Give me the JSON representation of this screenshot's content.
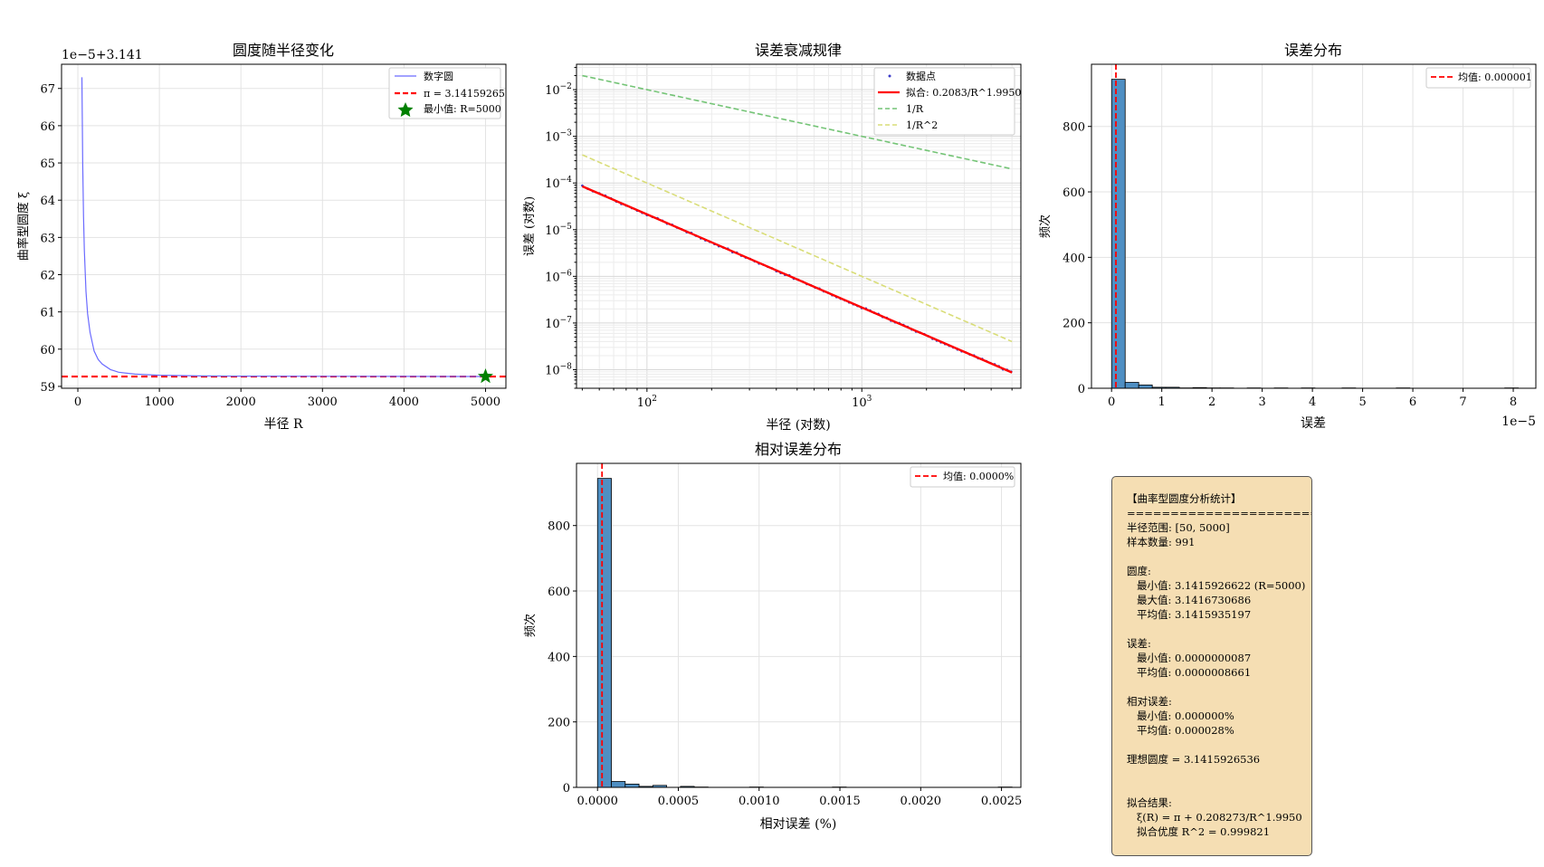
{
  "charts": {
    "p1": {
      "title": "圆度随半径变化",
      "xlabel": "半径 R",
      "ylabel": "曲率型圆度 ξ",
      "offset_text": "1e−5+3.141",
      "xtick_labels": [
        "0",
        "1000",
        "2000",
        "3000",
        "4000",
        "5000"
      ],
      "ytick_labels": [
        "59",
        "60",
        "61",
        "62",
        "63",
        "64",
        "65",
        "66",
        "67"
      ],
      "legend": [
        "数字圆",
        "π = 3.14159265",
        "最小值: R=5000"
      ]
    },
    "p2": {
      "title": "误差衰减规律",
      "xlabel": "半径 (对数)",
      "ylabel": "误差 (对数)",
      "legend": [
        "数据点",
        "拟合: 0.2083/R^1.9950",
        "1/R",
        "1/R^2"
      ]
    },
    "p3": {
      "title": "误差分布",
      "xlabel": "误差",
      "ylabel": "频次",
      "offset_text": "1e−5",
      "xtick_labels": [
        "0",
        "1",
        "2",
        "3",
        "4",
        "5",
        "6",
        "7",
        "8"
      ],
      "ytick_labels": [
        "0",
        "200",
        "400",
        "600",
        "800"
      ],
      "legend": [
        "均值: 0.000001"
      ]
    },
    "p4": {
      "title": "相对误差分布",
      "xlabel": "相对误差 (%)",
      "ylabel": "频次",
      "xtick_labels": [
        "0.0000",
        "0.0005",
        "0.0010",
        "0.0015",
        "0.0020",
        "0.0025"
      ],
      "ytick_labels": [
        "0",
        "200",
        "400",
        "600",
        "800"
      ],
      "legend": [
        "均值: 0.0000%"
      ]
    }
  },
  "stats_text": "【曲率型圆度分析统计】\n============================\n半径范围: [50, 5000]\n样本数量: 991\n\n圆度:\n   最小值: 3.1415926622 (R=5000)\n   最大值: 3.1416730686\n   平均值: 3.1415935197\n\n误差:\n   最小值: 0.0000000087\n   平均值: 0.0000008661\n\n相对误差:\n   最小值: 0.000000%\n   平均值: 0.000028%\n\n理想圆度 = 3.1415926536\n\n\n拟合结果:\n   ξ(R) = π + 0.208273/R^1.9950\n   拟合优度 R^2 = 0.999821",
  "colors": {
    "curve": "#6b6bff",
    "pi_line": "#ff0000",
    "min_marker": "#008000",
    "data_points": "#3c3cc8",
    "fit": "#ff0000",
    "ref_1_over_R": "#74c476",
    "ref_1_over_R2": "#d9dd78",
    "hist_bar": "#4f8fc3",
    "stats_bg": "#f5deb3"
  },
  "chart_data": [
    {
      "type": "line",
      "id": "p1",
      "x_range": [
        50,
        5000
      ],
      "y_unit": "ξ (value = 3.141 + y × 1e-5)",
      "x": [
        50,
        60,
        70,
        80,
        100,
        120,
        150,
        200,
        250,
        300,
        400,
        500,
        700,
        1000,
        1500,
        2000,
        3000,
        4000,
        5000
      ],
      "y": [
        67.3,
        64.95,
        63.55,
        62.65,
        61.55,
        60.95,
        60.45,
        59.95,
        59.72,
        59.6,
        59.45,
        59.38,
        59.33,
        59.3,
        59.28,
        59.275,
        59.27,
        59.268,
        59.266
      ],
      "pi_value": 59.265,
      "min_point": {
        "x": 5000,
        "y": 59.266
      },
      "xlim": [
        -200,
        5250
      ],
      "ylim": [
        58.95,
        67.65
      ],
      "grid": true,
      "legend_position": "top-right"
    },
    {
      "type": "line",
      "id": "p2",
      "scale": "log-log",
      "xlim": [
        47,
        5500
      ],
      "ylim": [
        4e-09,
        0.035
      ],
      "fit": {
        "coef": 0.2083,
        "exponent": 1.995
      },
      "reference_1_over_R": {
        "x": [
          50,
          5000
        ],
        "y": [
          0.02,
          0.0002
        ]
      },
      "reference_1_over_R2": {
        "x": [
          50,
          5000
        ],
        "y": [
          0.0004,
          4e-08
        ]
      },
      "points_x_range": [
        50,
        5000
      ],
      "grid": true,
      "legend_position": "top-right"
    },
    {
      "type": "bar",
      "id": "p3",
      "x_unit": "1e-5",
      "bin_width": 0.27,
      "bin_start": 0.0009,
      "values": [
        944,
        18,
        10,
        3,
        3,
        1,
        2,
        1,
        1,
        0,
        1,
        0,
        1,
        0,
        1,
        0,
        0,
        1,
        0,
        0,
        0,
        1,
        0,
        0,
        0,
        0,
        0,
        0,
        0,
        1
      ],
      "mean": 0.087,
      "xlim": [
        -0.4,
        8.45
      ],
      "ylim": [
        0,
        990
      ],
      "grid": true,
      "legend_position": "top-right"
    },
    {
      "type": "bar",
      "id": "p4",
      "bin_width": 8.55e-05,
      "bin_start": 3e-07,
      "values": [
        944,
        18,
        10,
        3,
        6,
        0,
        3,
        1,
        0,
        0,
        0,
        1,
        0,
        0,
        0,
        0,
        0,
        1,
        0,
        0,
        0,
        0,
        0,
        0,
        0,
        0,
        0,
        0,
        0,
        1
      ],
      "mean": 2.8e-05,
      "xlim": [
        -0.00013,
        0.00262
      ],
      "ylim": [
        0,
        990
      ],
      "grid": true,
      "legend_position": "top-right"
    }
  ]
}
